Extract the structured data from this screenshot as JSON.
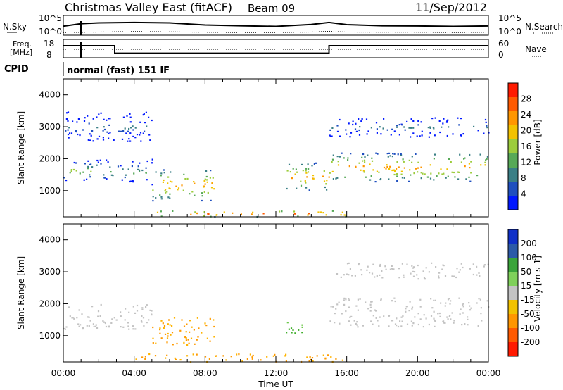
{
  "header": {
    "title": "Christmas Valley East (fitACF)",
    "beam": "Beam 09",
    "date": "11/Sep/2012"
  },
  "noise_panel": {
    "left_label": "N.Sky",
    "right_label": "N.Search",
    "left_ticks": [
      "10^5",
      "10^0"
    ],
    "right_ticks": [
      "10^5",
      "10^0"
    ]
  },
  "freq_panel": {
    "left_label_1": "Freq.",
    "left_label_2": "[MHz]",
    "right_label": "Nave",
    "left_ticks": [
      "18",
      "8"
    ],
    "right_ticks": [
      "60",
      "0"
    ]
  },
  "cpid_panel": {
    "label": "CPID",
    "program": "normal (fast) 151 IF"
  },
  "colors": {
    "scale": [
      "#0018ff",
      "#1f4fbf",
      "#3a7f86",
      "#57a957",
      "#9ccc3c",
      "#f2c200",
      "#ff9600",
      "#ff5a00",
      "#ff1a00"
    ],
    "ground_scatter": "#c3c3c3"
  },
  "chart_data": [
    {
      "type": "line",
      "panel": "noise",
      "title": "",
      "scale": "log",
      "series": [
        {
          "name": "N.Sky",
          "x": [
            0,
            1,
            2,
            4,
            6,
            8,
            10,
            12,
            14,
            15,
            16,
            18,
            20,
            22,
            24
          ],
          "values": [
            1000,
            10000,
            20000,
            30000,
            20000,
            3000,
            1500,
            800,
            5000,
            30000,
            4000,
            1500,
            1200,
            800,
            1200
          ]
        },
        {
          "name": "N.Search",
          "x": [
            0,
            2,
            4,
            6,
            8,
            10,
            12,
            14,
            15,
            16,
            18,
            20,
            22,
            24
          ],
          "values": [
            3,
            5,
            8,
            6,
            4,
            3,
            3,
            5,
            10,
            5,
            4,
            4,
            3,
            4
          ]
        }
      ]
    },
    {
      "type": "line",
      "panel": "frequency",
      "title": "",
      "ylim": [
        8,
        18
      ],
      "series": [
        {
          "name": "Freq.",
          "x": [
            0,
            2.9,
            2.9,
            15,
            15,
            24
          ],
          "values": [
            15.5,
            15.5,
            10.2,
            10.2,
            15.5,
            15.5
          ]
        }
      ]
    },
    {
      "type": "heatmap",
      "panel": "power",
      "xlabel": "",
      "ylabel": "Slant Range [km]",
      "colorbar_label": "Power [dB]",
      "colorbar_ticks": [
        "4",
        "8",
        "12",
        "16",
        "20",
        "24",
        "28"
      ],
      "xlim": [
        0,
        24
      ],
      "ylim": [
        180,
        4500
      ],
      "yticks": [
        "1000",
        "2000",
        "3000",
        "4000"
      ],
      "regions": [
        {
          "t": [
            0,
            3
          ],
          "range": [
            1300,
            2000
          ],
          "value": 14,
          "label": "band"
        },
        {
          "t": [
            3,
            5
          ],
          "range": [
            1200,
            2000
          ],
          "value": 12,
          "label": "band"
        },
        {
          "t": [
            5,
            8.5
          ],
          "range": [
            700,
            1700
          ],
          "value": 22,
          "label": "patch"
        },
        {
          "t": [
            5,
            16
          ],
          "range": [
            200,
            400
          ],
          "value": 24,
          "label": "near-range"
        },
        {
          "t": [
            12.5,
            15
          ],
          "range": [
            1000,
            1900
          ],
          "value": 20,
          "label": "patch"
        },
        {
          "t": [
            15,
            24
          ],
          "range": [
            1300,
            2200
          ],
          "value": 20,
          "label": "band"
        },
        {
          "t": [
            0,
            5
          ],
          "range": [
            2500,
            3500
          ],
          "value": 6,
          "label": "upper"
        },
        {
          "t": [
            15,
            24
          ],
          "range": [
            2700,
            3300
          ],
          "value": 6,
          "label": "upper"
        }
      ]
    },
    {
      "type": "heatmap",
      "panel": "velocity",
      "xlabel": "Time UT",
      "ylabel": "Slant Range [km]",
      "colorbar_label": "Velocity [m s-1]",
      "colorbar_ticks": [
        "-200",
        "-100",
        "-50",
        "-15",
        "15",
        "50",
        "100",
        "200"
      ],
      "xlim": [
        0,
        24
      ],
      "ylim": [
        180,
        4500
      ],
      "yticks": [
        "1000",
        "2000",
        "3000",
        "4000"
      ],
      "xticks": [
        "00:00",
        "04:00",
        "08:00",
        "12:00",
        "16:00",
        "20:00",
        "00:00"
      ],
      "regions": [
        {
          "t": [
            0,
            5
          ],
          "range": [
            1200,
            2000
          ],
          "value": 0,
          "label": "ground scatter"
        },
        {
          "t": [
            5,
            8.5
          ],
          "range": [
            700,
            1600
          ],
          "value": -50,
          "label": "patch"
        },
        {
          "t": [
            4,
            16
          ],
          "range": [
            200,
            450
          ],
          "value": -50,
          "label": "near-range"
        },
        {
          "t": [
            12.5,
            13.5
          ],
          "range": [
            900,
            1500
          ],
          "value": 50,
          "label": "patch"
        },
        {
          "t": [
            15,
            24
          ],
          "range": [
            1300,
            2200
          ],
          "value": 0,
          "label": "ground scatter"
        },
        {
          "t": [
            15,
            24
          ],
          "range": [
            2800,
            3300
          ],
          "value": 0,
          "label": "upper"
        }
      ]
    }
  ]
}
